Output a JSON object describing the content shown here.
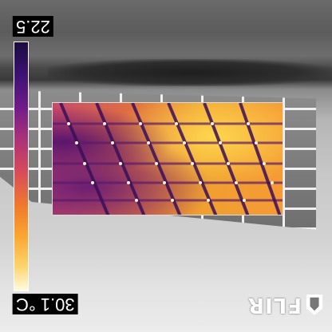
{
  "scale": {
    "max_label": "22.5",
    "min_label": "30.1 °C"
  },
  "logo": {
    "text": "FLIR"
  },
  "colors": {
    "thermal_cold": "#1a0b3d",
    "thermal_mid": "#d84a5a",
    "thermal_hot": "#fffbe0",
    "frame_border": "#dcdcdc"
  }
}
